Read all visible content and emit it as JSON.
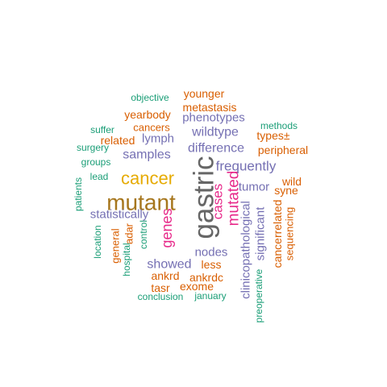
{
  "palette": {
    "green": "#1b9e77",
    "orange": "#d95f02",
    "purple": "#7570b3",
    "magenta": "#e7298a",
    "mustard": "#e6ab02",
    "olive": "#a6761d",
    "gray": "#666666"
  },
  "words": [
    {
      "text": "gastric",
      "color": "gray"
    },
    {
      "text": "mutant",
      "color": "olive"
    },
    {
      "text": "cancer",
      "color": "mustard"
    },
    {
      "text": "cases",
      "color": "magenta"
    },
    {
      "text": "mutated",
      "color": "magenta"
    },
    {
      "text": "genes",
      "color": "magenta"
    },
    {
      "text": "frequently",
      "color": "purple"
    },
    {
      "text": "difference",
      "color": "purple"
    },
    {
      "text": "wildtype",
      "color": "purple"
    },
    {
      "text": "samples",
      "color": "purple"
    },
    {
      "text": "phenotypes",
      "color": "purple"
    },
    {
      "text": "statistically",
      "color": "purple"
    },
    {
      "text": "showed",
      "color": "purple"
    },
    {
      "text": "nodes",
      "color": "purple"
    },
    {
      "text": "tumor",
      "color": "purple"
    },
    {
      "text": "lymph",
      "color": "purple"
    },
    {
      "text": "clinicopathological",
      "color": "purple"
    },
    {
      "text": "significant",
      "color": "purple"
    },
    {
      "text": "metastasis",
      "color": "orange"
    },
    {
      "text": "younger",
      "color": "orange"
    },
    {
      "text": "yearbody",
      "color": "orange"
    },
    {
      "text": "cancers",
      "color": "orange"
    },
    {
      "text": "related",
      "color": "orange"
    },
    {
      "text": "types±",
      "color": "orange"
    },
    {
      "text": "peripheral",
      "color": "orange"
    },
    {
      "text": "wild",
      "color": "orange"
    },
    {
      "text": "syne",
      "color": "orange"
    },
    {
      "text": "cancerrelated",
      "color": "orange"
    },
    {
      "text": "sequencing",
      "color": "orange"
    },
    {
      "text": "general",
      "color": "orange"
    },
    {
      "text": "adar",
      "color": "orange"
    },
    {
      "text": "less",
      "color": "orange"
    },
    {
      "text": "ankrd",
      "color": "orange"
    },
    {
      "text": "ankrdc",
      "color": "orange"
    },
    {
      "text": "tasr",
      "color": "orange"
    },
    {
      "text": "exome",
      "color": "orange"
    },
    {
      "text": "objective",
      "color": "green"
    },
    {
      "text": "methods",
      "color": "green"
    },
    {
      "text": "suffer",
      "color": "green"
    },
    {
      "text": "surgery",
      "color": "green"
    },
    {
      "text": "groups",
      "color": "green"
    },
    {
      "text": "lead",
      "color": "green"
    },
    {
      "text": "patients",
      "color": "green"
    },
    {
      "text": "location",
      "color": "green"
    },
    {
      "text": "hospital",
      "color": "green"
    },
    {
      "text": "control",
      "color": "green"
    },
    {
      "text": "conclusion",
      "color": "green"
    },
    {
      "text": "january",
      "color": "green"
    },
    {
      "text": "preoperative",
      "color": "green"
    }
  ]
}
